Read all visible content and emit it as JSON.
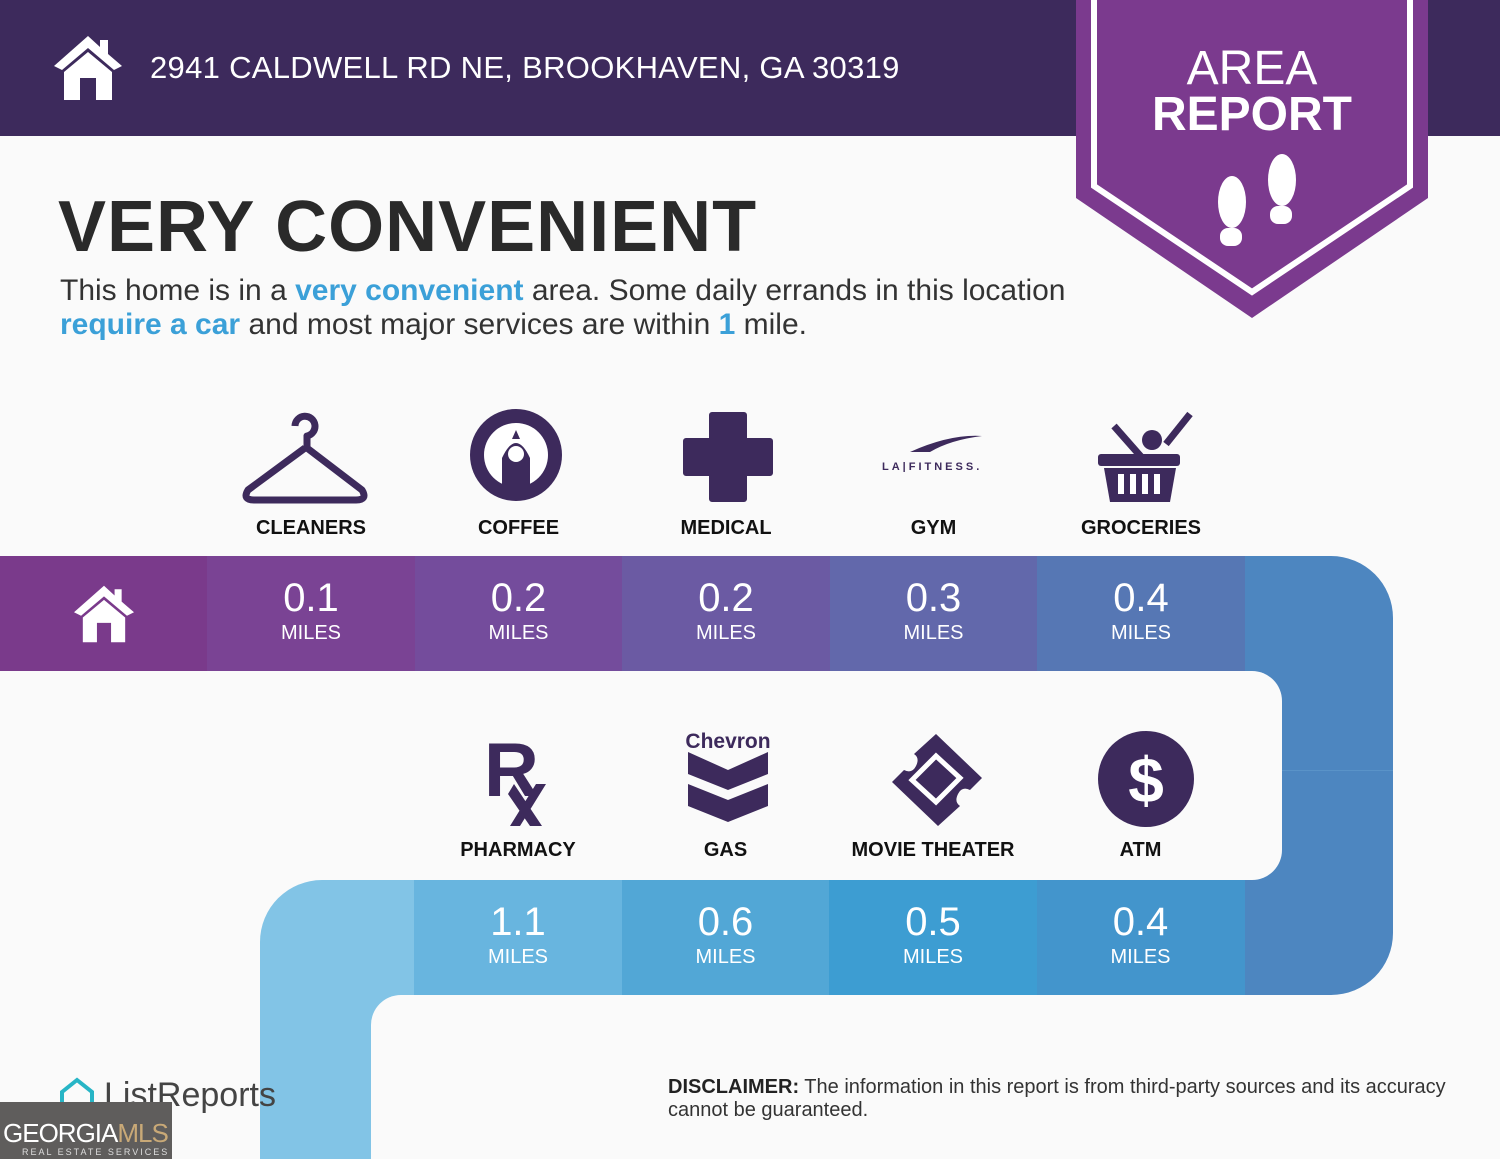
{
  "header": {
    "address": "2941 CALDWELL RD NE, BROOKHAVEN, GA 30319",
    "home_icon": "house-icon"
  },
  "badge": {
    "line1": "AREA",
    "line2": "REPORT",
    "icon": "footprints-icon"
  },
  "headline": "VERY CONVENIENT",
  "description": {
    "p1": "This home is in a ",
    "h1": "very convenient",
    "p2": " area. Some daily errands in this location ",
    "h2": "require a car",
    "p3": " and most major services are within ",
    "h3": "1",
    "p4": " mile."
  },
  "unit": "MILES",
  "row1": [
    {
      "label": "CLEANERS",
      "value": "0.1",
      "icon": "hanger-icon"
    },
    {
      "label": "COFFEE",
      "value": "0.2",
      "icon": "starbucks-logo-icon"
    },
    {
      "label": "MEDICAL",
      "value": "0.2",
      "icon": "medical-cross-icon"
    },
    {
      "label": "GYM",
      "value": "0.3",
      "icon": "la-fitness-logo-icon",
      "logo_text": "LA|FITNESS."
    },
    {
      "label": "GROCERIES",
      "value": "0.4",
      "icon": "grocery-basket-icon"
    }
  ],
  "row2": [
    {
      "label": "PHARMACY",
      "value": "1.1",
      "icon": "rx-icon"
    },
    {
      "label": "GAS",
      "value": "0.6",
      "icon": "chevron-logo-icon",
      "logo_text": "Chevron"
    },
    {
      "label": "MOVIE THEATER",
      "value": "0.5",
      "icon": "ticket-icon"
    },
    {
      "label": "ATM",
      "value": "0.4",
      "icon": "dollar-icon"
    }
  ],
  "footer": {
    "brand": "ListReports",
    "mls_logo": "GEORGIAMLS REAL ESTATE SERVICES",
    "disclaimer_label": "DISCLAIMER:",
    "disclaimer_text": " The information in this report is from third-party sources and its accuracy cannot be guaranteed."
  },
  "colors": {
    "header": "#3d2a5c",
    "badge": "#7b3a8e",
    "highlight": "#3ba0d8",
    "icon": "#3d2a5c"
  }
}
